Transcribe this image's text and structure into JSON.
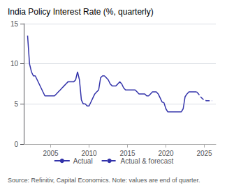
{
  "chart_data": {
    "type": "line",
    "title": "India Policy Interest Rate (%, quarterly)",
    "annotations": [
      "Source: Refinitiv, Capital Economics. Note: values are end of quarter."
    ],
    "xlim": [
      2001.5,
      2026.5
    ],
    "xticks": [
      2005,
      2010,
      2015,
      2020,
      2025
    ],
    "ylim": [
      0,
      15
    ],
    "yticks": [
      0,
      5,
      10,
      15
    ],
    "grid": "y",
    "legend": "bottom",
    "series": [
      {
        "name": "Actual",
        "color": "#3333aa",
        "line_style": "solid",
        "x": [
          2002.0,
          2002.25,
          2002.5,
          2002.75,
          2003.0,
          2003.25,
          2003.5,
          2003.75,
          2004.0,
          2004.25,
          2004.5,
          2004.75,
          2005.0,
          2005.25,
          2005.5,
          2005.75,
          2006.0,
          2006.25,
          2006.5,
          2006.75,
          2007.0,
          2007.25,
          2007.5,
          2007.75,
          2008.0,
          2008.25,
          2008.5,
          2008.75,
          2009.0,
          2009.25,
          2009.5,
          2009.75,
          2010.0,
          2010.25,
          2010.5,
          2010.75,
          2011.0,
          2011.25,
          2011.5,
          2011.75,
          2012.0,
          2012.25,
          2012.5,
          2012.75,
          2013.0,
          2013.25,
          2013.5,
          2013.75,
          2014.0,
          2014.25,
          2014.5,
          2014.75,
          2015.0,
          2015.25,
          2015.5,
          2015.75,
          2016.0,
          2016.25,
          2016.5,
          2016.75,
          2017.0,
          2017.25,
          2017.5,
          2017.75,
          2018.0,
          2018.25,
          2018.5,
          2018.75,
          2019.0,
          2019.25,
          2019.5,
          2019.75,
          2020.0,
          2020.25,
          2020.5,
          2020.75,
          2021.0,
          2021.25,
          2021.5,
          2021.75,
          2022.0,
          2022.25,
          2022.5,
          2022.75,
          2023.0,
          2023.25,
          2023.5,
          2023.75,
          2024.0
        ],
        "values": [
          13.5,
          10.0,
          9.0,
          8.5,
          8.5,
          8.0,
          7.5,
          7.0,
          6.5,
          6.0,
          6.0,
          6.0,
          6.0,
          6.0,
          6.0,
          6.25,
          6.5,
          6.75,
          7.0,
          7.25,
          7.5,
          7.75,
          7.75,
          7.75,
          7.75,
          8.0,
          9.0,
          8.0,
          5.5,
          5.0,
          5.0,
          4.75,
          4.75,
          5.25,
          5.75,
          6.25,
          6.5,
          6.75,
          8.25,
          8.5,
          8.5,
          8.25,
          8.0,
          7.5,
          7.25,
          7.25,
          7.25,
          7.5,
          7.75,
          7.5,
          7.0,
          6.75,
          6.75,
          6.75,
          6.75,
          6.75,
          6.75,
          6.5,
          6.25,
          6.25,
          6.25,
          6.25,
          6.0,
          6.0,
          6.25,
          6.5,
          6.5,
          6.5,
          6.25,
          5.75,
          5.25,
          5.15,
          4.4,
          4.0,
          4.0,
          4.0,
          4.0,
          4.0,
          4.0,
          4.0,
          4.0,
          4.4,
          5.9,
          6.25,
          6.5,
          6.5,
          6.5,
          6.5,
          6.5
        ]
      },
      {
        "name": "Actual & forecast",
        "color": "#3333aa",
        "line_style": "dashed",
        "x": [
          2024.0,
          2024.25,
          2024.5,
          2024.75,
          2025.0,
          2025.25,
          2025.5,
          2025.75,
          2026.0
        ],
        "values": [
          6.5,
          6.25,
          5.9,
          5.65,
          5.5,
          5.4,
          5.4,
          5.4,
          5.4
        ]
      }
    ]
  }
}
